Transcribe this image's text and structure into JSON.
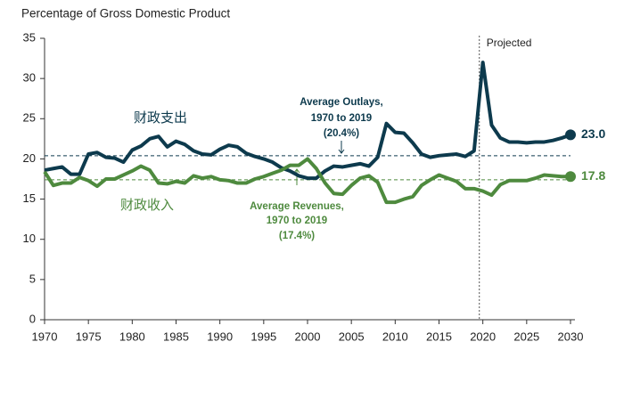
{
  "chart_data": {
    "type": "line",
    "title": "Percentage of Gross Domestic Product",
    "x": [
      1970,
      1971,
      1972,
      1973,
      1974,
      1975,
      1976,
      1977,
      1978,
      1979,
      1980,
      1981,
      1982,
      1983,
      1984,
      1985,
      1986,
      1987,
      1988,
      1989,
      1990,
      1991,
      1992,
      1993,
      1994,
      1995,
      1996,
      1997,
      1998,
      1999,
      2000,
      2001,
      2002,
      2003,
      2004,
      2005,
      2006,
      2007,
      2008,
      2009,
      2010,
      2011,
      2012,
      2013,
      2014,
      2015,
      2016,
      2017,
      2018,
      2019,
      2020,
      2021,
      2022,
      2023,
      2024,
      2025,
      2026,
      2027,
      2028,
      2029,
      2030
    ],
    "series": [
      {
        "name": "财政支出",
        "color": "#0d3a4d",
        "values": [
          18.6,
          18.8,
          19.0,
          18.1,
          18.1,
          20.6,
          20.8,
          20.2,
          20.1,
          19.6,
          21.1,
          21.6,
          22.5,
          22.8,
          21.5,
          22.2,
          21.8,
          21.0,
          20.6,
          20.5,
          21.2,
          21.7,
          21.5,
          20.7,
          20.3,
          20.0,
          19.6,
          18.9,
          18.5,
          17.9,
          17.6,
          17.6,
          18.5,
          19.1,
          19.0,
          19.2,
          19.4,
          19.1,
          20.2,
          24.4,
          23.3,
          23.2,
          22.0,
          20.6,
          20.2,
          20.4,
          20.5,
          20.6,
          20.3,
          21.0,
          32.0,
          24.2,
          22.6,
          22.1,
          22.1,
          22.0,
          22.1,
          22.1,
          22.3,
          22.6,
          23.0
        ],
        "value_labels": [
          null,
          null,
          null,
          null,
          null,
          null,
          null,
          null,
          null,
          null,
          null,
          null,
          null,
          null,
          null,
          null,
          null,
          null,
          null,
          null,
          null,
          null,
          null,
          null,
          null,
          null,
          null,
          null,
          null,
          null,
          null,
          null,
          null,
          null,
          null,
          null,
          null,
          null,
          null,
          null,
          null,
          null,
          null,
          null,
          null,
          null,
          null,
          null,
          null,
          null,
          null,
          null,
          null,
          null,
          null,
          null,
          null,
          null,
          null,
          null,
          "23.0"
        ]
      },
      {
        "name": "财政收入",
        "color": "#4e8a3e",
        "values": [
          18.4,
          16.7,
          17.0,
          17.0,
          17.7,
          17.3,
          16.6,
          17.5,
          17.5,
          18.0,
          18.5,
          19.1,
          18.6,
          17.0,
          16.9,
          17.2,
          17.0,
          17.9,
          17.6,
          17.8,
          17.4,
          17.3,
          17.0,
          17.0,
          17.5,
          17.8,
          18.2,
          18.6,
          19.2,
          19.2,
          20.0,
          18.8,
          17.0,
          15.7,
          15.6,
          16.7,
          17.6,
          17.9,
          17.1,
          14.6,
          14.6,
          15.0,
          15.3,
          16.7,
          17.4,
          18.0,
          17.6,
          17.2,
          16.3,
          16.3,
          16.0,
          15.5,
          16.8,
          17.3,
          17.3,
          17.3,
          17.6,
          18.0,
          17.9,
          17.8,
          17.8
        ],
        "value_labels": [
          null,
          null,
          null,
          null,
          null,
          null,
          null,
          null,
          null,
          null,
          null,
          null,
          null,
          null,
          null,
          null,
          null,
          null,
          null,
          null,
          null,
          null,
          null,
          null,
          null,
          null,
          null,
          null,
          null,
          null,
          null,
          null,
          null,
          null,
          null,
          null,
          null,
          null,
          null,
          null,
          null,
          null,
          null,
          null,
          null,
          null,
          null,
          null,
          null,
          null,
          null,
          null,
          null,
          null,
          null,
          null,
          null,
          null,
          null,
          null,
          "17.8"
        ]
      }
    ],
    "reference_lines": [
      {
        "value": 20.4,
        "color": "#0d3a4d",
        "label": [
          "Average Outlays,",
          "1970 to 2019",
          "(20.4%)"
        ]
      },
      {
        "value": 17.4,
        "color": "#4e8a3e",
        "label": [
          "Average Revenues,",
          "1970 to 2019",
          "(17.4%)"
        ]
      }
    ],
    "projection": {
      "x": 2019.6,
      "label": "Projected"
    },
    "xlim": [
      1970,
      2030
    ],
    "ylim": [
      0,
      35
    ],
    "xticks": [
      1970,
      1975,
      1980,
      1985,
      1990,
      1995,
      2000,
      2005,
      2010,
      2015,
      2020,
      2025,
      2030
    ],
    "yticks": [
      0,
      5,
      10,
      15,
      20,
      25,
      30,
      35
    ],
    "grid": false
  }
}
